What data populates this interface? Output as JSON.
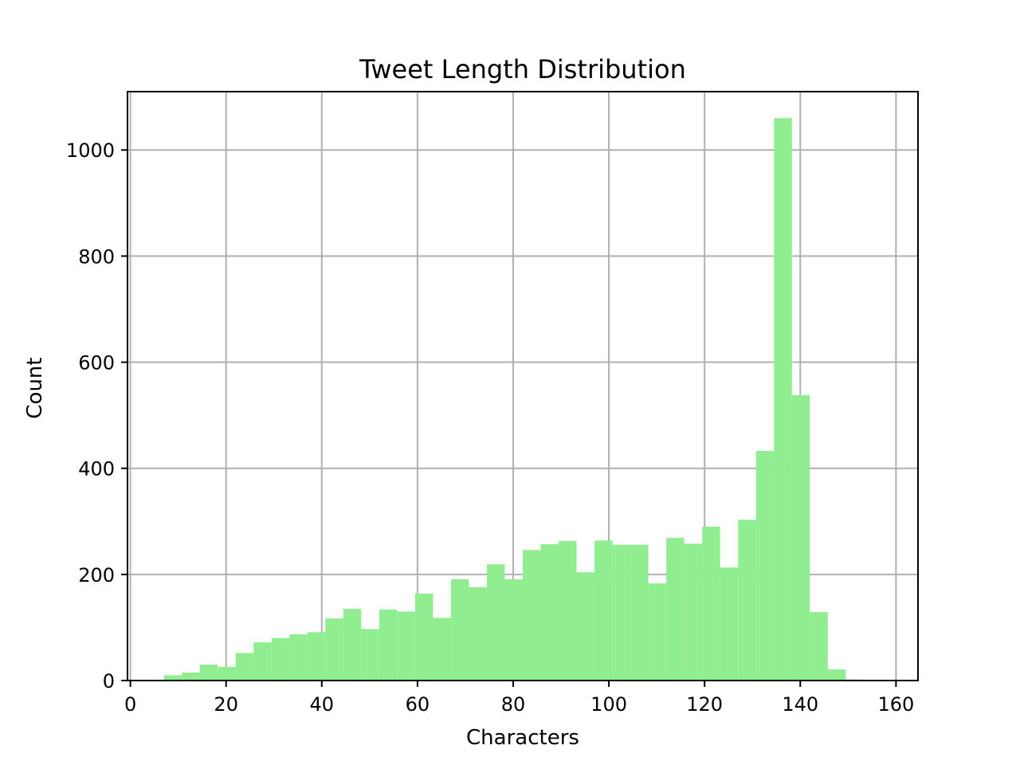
{
  "chart_data": {
    "type": "bar",
    "title": "Tweet Length Distribution",
    "xlabel": "Characters",
    "ylabel": "Count",
    "xlim": [
      -0.6,
      164.6
    ],
    "ylim": [
      0,
      1110
    ],
    "grid": true,
    "bar_color": "#90ee90",
    "xticks": [
      0,
      20,
      40,
      60,
      80,
      100,
      120,
      140,
      160
    ],
    "yticks": [
      0,
      200,
      400,
      600,
      800,
      1000
    ],
    "bin_edges": [
      7,
      10.75,
      14.5,
      18.25,
      22,
      25.75,
      29.5,
      33.25,
      37,
      40.75,
      44.5,
      48.25,
      52,
      55.75,
      59.5,
      63.25,
      67,
      70.75,
      74.5,
      78.25,
      82,
      85.75,
      89.5,
      93.25,
      97,
      100.75,
      104.5,
      108.25,
      112,
      115.75,
      119.5,
      123.25,
      127,
      130.75,
      134.5,
      138.25,
      142,
      145.75,
      149.5,
      153.25,
      157
    ],
    "counts": [
      10,
      15,
      30,
      26,
      52,
      72,
      80,
      87,
      91,
      117,
      135,
      97,
      134,
      130,
      164,
      118,
      191,
      176,
      219,
      191,
      246,
      257,
      263,
      204,
      264,
      256,
      256,
      183,
      269,
      258,
      290,
      213,
      303,
      433,
      1060,
      538,
      129,
      21,
      2,
      0
    ]
  }
}
